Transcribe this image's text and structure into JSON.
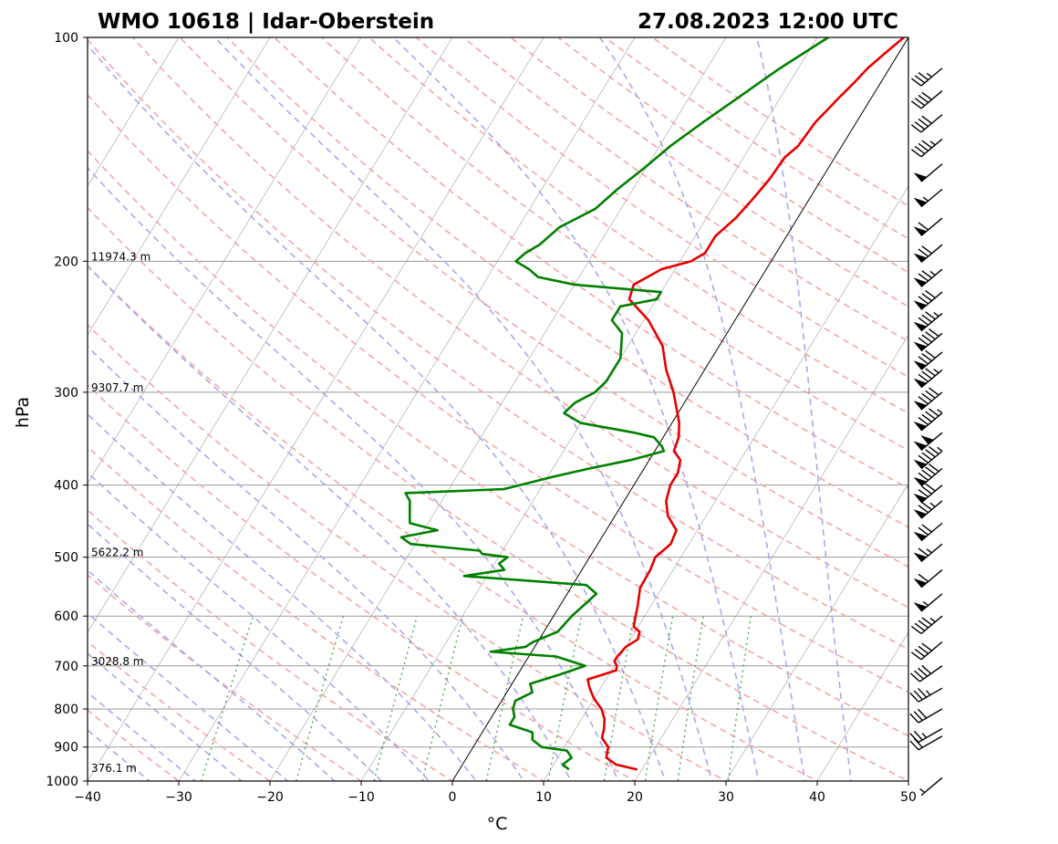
{
  "chart_data": {
    "type": "line",
    "title_left": "WMO 10618 | Idar-Oberstein",
    "title_right": "27.08.2023 12:00 UTC",
    "xlabel": "°C",
    "ylabel": "hPa",
    "xlim": [
      -40,
      50
    ],
    "ylim": [
      1000,
      100
    ],
    "y_scale": "log",
    "x_ticks": [
      "−40",
      "−30",
      "−20",
      "−10",
      "0",
      "10",
      "20",
      "30",
      "40",
      "50"
    ],
    "x_tick_values": [
      -40,
      -30,
      -20,
      -10,
      0,
      10,
      20,
      30,
      40,
      50
    ],
    "y_ticks": [
      "100",
      "200",
      "300",
      "400",
      "500",
      "600",
      "700",
      "800",
      "900",
      "1000"
    ],
    "y_tick_values": [
      100,
      200,
      300,
      400,
      500,
      600,
      700,
      800,
      900,
      1000
    ],
    "grid": true,
    "height_labels": [
      {
        "p": 200,
        "text": "11974.3 m"
      },
      {
        "p": 300,
        "text": "9307.7 m"
      },
      {
        "p": 500,
        "text": "5622.2 m"
      },
      {
        "p": 700,
        "text": "3028.8 m"
      },
      {
        "p": 975,
        "text": "376.1 m"
      }
    ],
    "background_lines": {
      "dry_adiabats": "red dashed",
      "moist_adiabats": "blue dashed",
      "mixing_ratio": "green dotted",
      "isotherms": "grey skewed",
      "zero_isotherm": "black"
    },
    "colors": {
      "temperature": "#e60000",
      "dewpoint": "#008000",
      "dry": "#f4a6a6",
      "moist": "#a9a9ec",
      "mixing": "#2e9a2e"
    },
    "series": [
      {
        "variable": "temperature",
        "color": "#e60000",
        "points": [
          [
            965,
            19.5
          ],
          [
            950,
            16.8
          ],
          [
            930,
            15.3
          ],
          [
            900,
            14.8
          ],
          [
            875,
            13.5
          ],
          [
            850,
            13.1
          ],
          [
            825,
            12.5
          ],
          [
            800,
            11.5
          ],
          [
            775,
            10.0
          ],
          [
            750,
            8.8
          ],
          [
            730,
            8.0
          ],
          [
            710,
            10.5
          ],
          [
            700,
            10.3
          ],
          [
            690,
            9.7
          ],
          [
            680,
            9.7
          ],
          [
            660,
            10.0
          ],
          [
            645,
            10.8
          ],
          [
            630,
            10.5
          ],
          [
            620,
            9.5
          ],
          [
            600,
            9.0
          ],
          [
            580,
            8.5
          ],
          [
            550,
            7.6
          ],
          [
            520,
            7.5
          ],
          [
            500,
            7.2
          ],
          [
            480,
            8.0
          ],
          [
            460,
            7.7
          ],
          [
            440,
            5.8
          ],
          [
            420,
            4.6
          ],
          [
            400,
            4.0
          ],
          [
            385,
            4.0
          ],
          [
            370,
            3.4
          ],
          [
            360,
            2.1
          ],
          [
            345,
            1.7
          ],
          [
            330,
            0.8
          ],
          [
            300,
            -1.9
          ],
          [
            280,
            -4.2
          ],
          [
            260,
            -6.2
          ],
          [
            240,
            -9.5
          ],
          [
            225,
            -13.0
          ],
          [
            215,
            -13.5
          ],
          [
            210,
            -12.5
          ],
          [
            205,
            -11.5
          ],
          [
            200,
            -8.8
          ],
          [
            195,
            -7.8
          ],
          [
            185,
            -7.8
          ],
          [
            175,
            -6.8
          ],
          [
            165,
            -6.2
          ],
          [
            155,
            -5.7
          ],
          [
            145,
            -5.5
          ],
          [
            140,
            -4.8
          ],
          [
            130,
            -4.5
          ],
          [
            125,
            -4.0
          ],
          [
            120,
            -3.5
          ],
          [
            115,
            -2.9
          ],
          [
            110,
            -2.4
          ],
          [
            105,
            -1.5
          ],
          [
            100,
            -0.5
          ]
        ]
      },
      {
        "variable": "dewpoint",
        "color": "#008000",
        "points": [
          [
            965,
            12.0
          ],
          [
            950,
            11.0
          ],
          [
            930,
            11.5
          ],
          [
            910,
            10.5
          ],
          [
            900,
            7.5
          ],
          [
            880,
            6.0
          ],
          [
            860,
            5.5
          ],
          [
            840,
            2.5
          ],
          [
            820,
            2.5
          ],
          [
            800,
            1.8
          ],
          [
            780,
            1.5
          ],
          [
            760,
            2.8
          ],
          [
            740,
            2.0
          ],
          [
            720,
            4.5
          ],
          [
            700,
            6.8
          ],
          [
            680,
            3.0
          ],
          [
            670,
            -4.5
          ],
          [
            660,
            -1.0
          ],
          [
            650,
            -0.5
          ],
          [
            630,
            1.5
          ],
          [
            600,
            2.0
          ],
          [
            560,
            3.2
          ],
          [
            545,
            1.5
          ],
          [
            530,
            -12.5
          ],
          [
            520,
            -8.5
          ],
          [
            510,
            -9.5
          ],
          [
            500,
            -9.0
          ],
          [
            495,
            -12.0
          ],
          [
            490,
            -12.5
          ],
          [
            480,
            -20.5
          ],
          [
            470,
            -22.0
          ],
          [
            460,
            -18.5
          ],
          [
            450,
            -22.0
          ],
          [
            440,
            -22.5
          ],
          [
            420,
            -23.5
          ],
          [
            410,
            -24.5
          ],
          [
            405,
            -14.0
          ],
          [
            390,
            -9.5
          ],
          [
            380,
            -6.0
          ],
          [
            370,
            -2.0
          ],
          [
            360,
            1.0
          ],
          [
            355,
            0.5
          ],
          [
            345,
            -1.0
          ],
          [
            340,
            -3.5
          ],
          [
            330,
            -10.0
          ],
          [
            320,
            -12.5
          ],
          [
            310,
            -12.0
          ],
          [
            300,
            -10.5
          ],
          [
            290,
            -10.0
          ],
          [
            270,
            -10.0
          ],
          [
            250,
            -11.5
          ],
          [
            240,
            -13.5
          ],
          [
            230,
            -13.5
          ],
          [
            225,
            -10.0
          ],
          [
            220,
            -10.0
          ],
          [
            215,
            -20.0
          ],
          [
            210,
            -24.5
          ],
          [
            205,
            -26.0
          ],
          [
            200,
            -28.0
          ],
          [
            195,
            -27.5
          ],
          [
            190,
            -26.5
          ],
          [
            180,
            -25.5
          ],
          [
            170,
            -22.8
          ],
          [
            160,
            -21.7
          ],
          [
            150,
            -20.2
          ],
          [
            140,
            -18.8
          ],
          [
            130,
            -16.8
          ],
          [
            120,
            -14.5
          ],
          [
            110,
            -12.0
          ],
          [
            100,
            -8.8
          ]
        ]
      }
    ],
    "wind_barbs": [
      {
        "p": 990,
        "spd": 5,
        "dir": 230
      },
      {
        "p": 870,
        "spd": 20,
        "dir": 240
      },
      {
        "p": 850,
        "spd": 25,
        "dir": 240
      },
      {
        "p": 800,
        "spd": 30,
        "dir": 240
      },
      {
        "p": 750,
        "spd": 35,
        "dir": 240
      },
      {
        "p": 700,
        "spd": 40,
        "dir": 235
      },
      {
        "p": 650,
        "spd": 40,
        "dir": 230
      },
      {
        "p": 600,
        "spd": 45,
        "dir": 230
      },
      {
        "p": 560,
        "spd": 55,
        "dir": 230
      },
      {
        "p": 520,
        "spd": 60,
        "dir": 230
      },
      {
        "p": 480,
        "spd": 65,
        "dir": 230
      },
      {
        "p": 450,
        "spd": 70,
        "dir": 230
      },
      {
        "p": 420,
        "spd": 75,
        "dir": 230
      },
      {
        "p": 400,
        "spd": 80,
        "dir": 230
      },
      {
        "p": 380,
        "spd": 90,
        "dir": 230
      },
      {
        "p": 360,
        "spd": 95,
        "dir": 230
      },
      {
        "p": 340,
        "spd": 100,
        "dir": 230
      },
      {
        "p": 320,
        "spd": 95,
        "dir": 230
      },
      {
        "p": 300,
        "spd": 90,
        "dir": 230
      },
      {
        "p": 280,
        "spd": 85,
        "dir": 230
      },
      {
        "p": 265,
        "spd": 80,
        "dir": 230
      },
      {
        "p": 250,
        "spd": 90,
        "dir": 230
      },
      {
        "p": 235,
        "spd": 85,
        "dir": 230
      },
      {
        "p": 220,
        "spd": 80,
        "dir": 230
      },
      {
        "p": 205,
        "spd": 75,
        "dir": 230
      },
      {
        "p": 190,
        "spd": 70,
        "dir": 230
      },
      {
        "p": 175,
        "spd": 60,
        "dir": 230
      },
      {
        "p": 160,
        "spd": 55,
        "dir": 230
      },
      {
        "p": 148,
        "spd": 50,
        "dir": 230
      },
      {
        "p": 137,
        "spd": 45,
        "dir": 230
      },
      {
        "p": 127,
        "spd": 40,
        "dir": 230
      },
      {
        "p": 118,
        "spd": 40,
        "dir": 230
      },
      {
        "p": 110,
        "spd": 35,
        "dir": 230
      }
    ]
  }
}
